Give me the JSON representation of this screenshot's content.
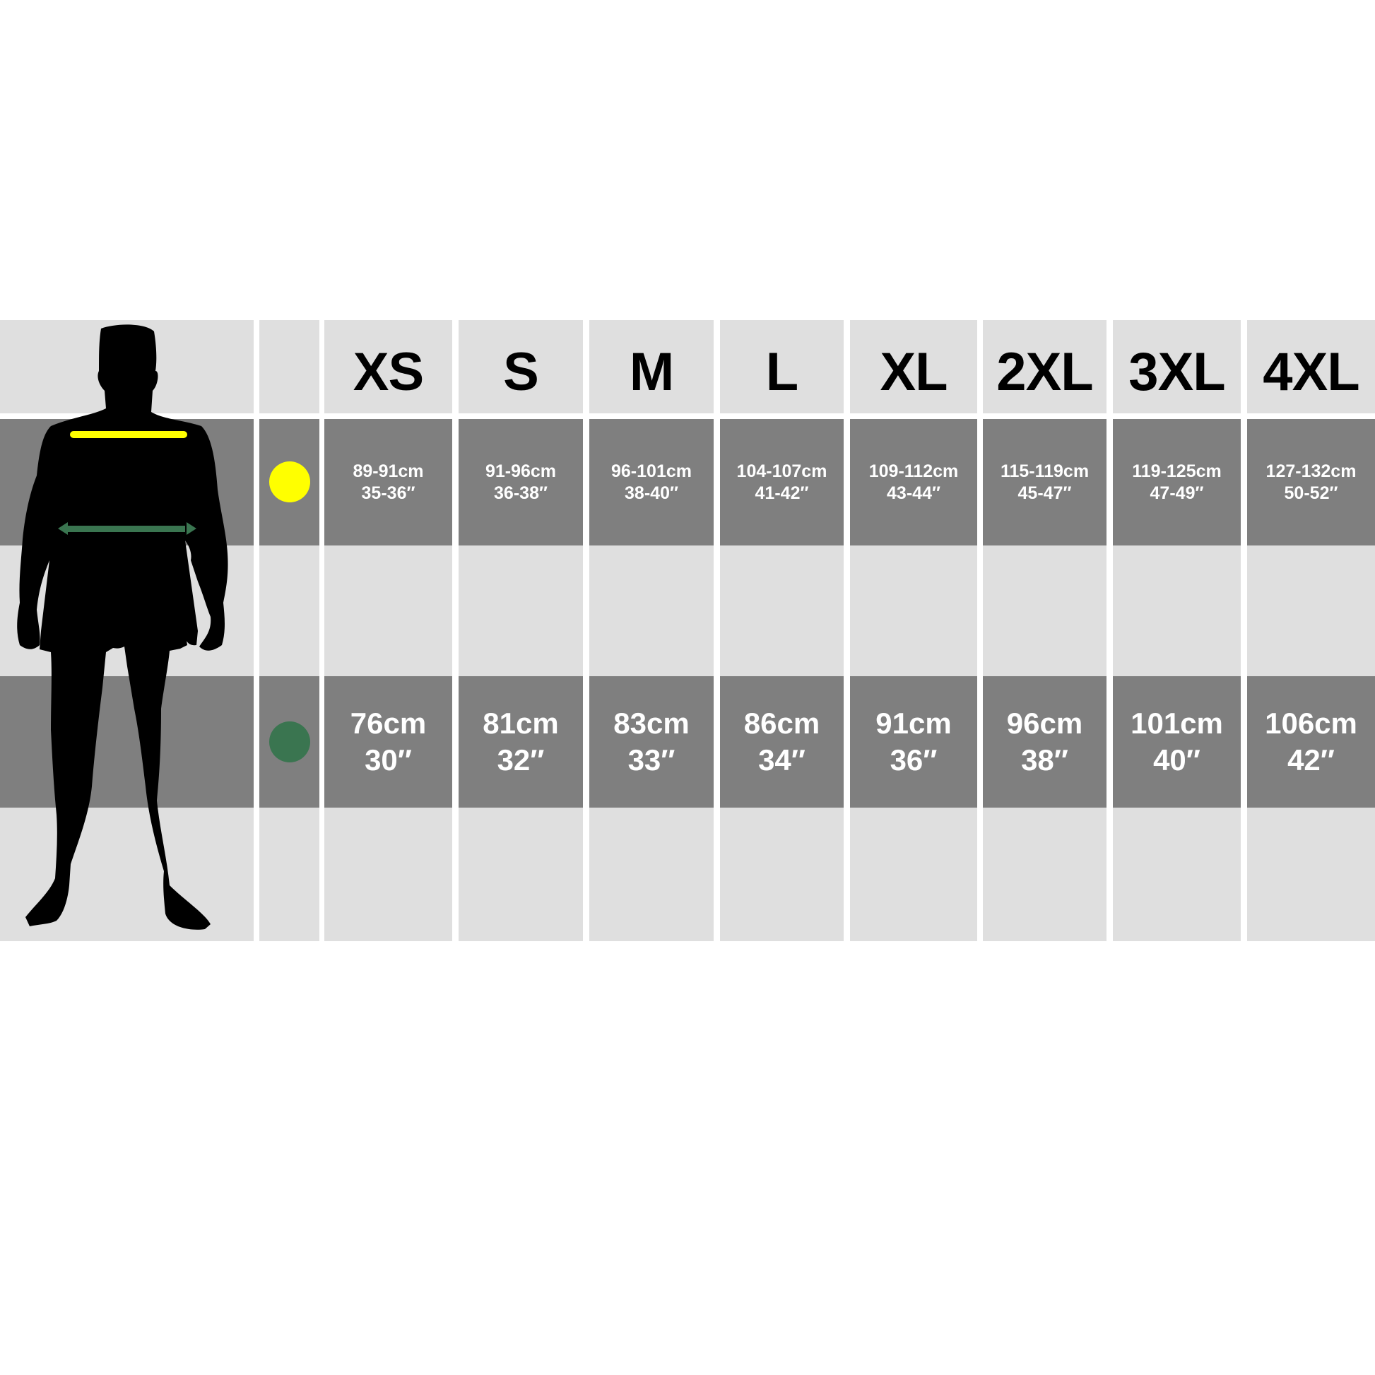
{
  "sizes": [
    "XS",
    "S",
    "M",
    "L",
    "XL",
    "2XL",
    "3XL",
    "4XL"
  ],
  "rows": {
    "chest": {
      "marker_color": "#ffff00",
      "values": [
        {
          "cm": "89-91cm",
          "in": "35-36″"
        },
        {
          "cm": "91-96cm",
          "in": "36-38″"
        },
        {
          "cm": "96-101cm",
          "in": "38-40″"
        },
        {
          "cm": "104-107cm",
          "in": "41-42″"
        },
        {
          "cm": "109-112cm",
          "in": "43-44″"
        },
        {
          "cm": "115-119cm",
          "in": "45-47″"
        },
        {
          "cm": "119-125cm",
          "in": "47-49″"
        },
        {
          "cm": "127-132cm",
          "in": "50-52″"
        }
      ]
    },
    "waist": {
      "marker_color": "#3a7550",
      "values": [
        {
          "cm": "76cm",
          "in": "30″"
        },
        {
          "cm": "81cm",
          "in": "32″"
        },
        {
          "cm": "83cm",
          "in": "33″"
        },
        {
          "cm": "86cm",
          "in": "34″"
        },
        {
          "cm": "91cm",
          "in": "36″"
        },
        {
          "cm": "96cm",
          "in": "38″"
        },
        {
          "cm": "101cm",
          "in": "40″"
        },
        {
          "cm": "106cm",
          "in": "42″"
        }
      ]
    }
  },
  "colors": {
    "light_cell": "#dfdfdf",
    "dark_cell": "#7f7f7f",
    "silhouette": "#000000"
  }
}
